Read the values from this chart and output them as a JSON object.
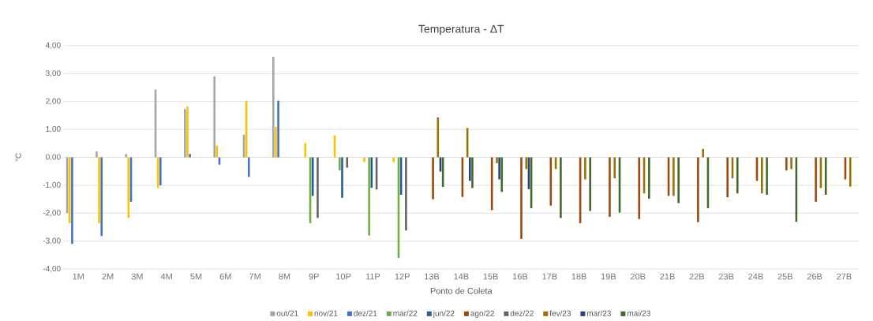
{
  "chart_data": {
    "type": "bar",
    "title": "Temperatura - ΔT",
    "xlabel": "Ponto de Coleta",
    "ylabel": "°C",
    "categories": [
      "1M",
      "2M",
      "3M",
      "4M",
      "5M",
      "6M",
      "7M",
      "8M",
      "9P",
      "10P",
      "11P",
      "12P",
      "13B",
      "14B",
      "15B",
      "16B",
      "17B",
      "18B",
      "19B",
      "20B",
      "21B",
      "22B",
      "23B",
      "24B",
      "25B",
      "26B",
      "27B"
    ],
    "series": [
      {
        "name": "out/21",
        "color": "#a5a5a5",
        "values": [
          -1.99,
          0.21,
          0.12,
          2.43,
          1.73,
          2.9,
          0.81,
          3.6,
          null,
          null,
          null,
          null,
          null,
          null,
          null,
          null,
          null,
          null,
          null,
          null,
          null,
          null,
          null,
          null,
          null,
          null,
          null
        ]
      },
      {
        "name": "nov/21",
        "color": "#ffc000",
        "values": [
          -2.36,
          -2.36,
          -2.17,
          -1.09,
          1.82,
          0.42,
          2.03,
          1.09,
          0.51,
          0.79,
          -0.17,
          -0.17,
          null,
          null,
          null,
          null,
          null,
          null,
          null,
          null,
          null,
          null,
          null,
          null,
          null,
          null,
          null
        ]
      },
      {
        "name": "dez/21",
        "color": "#4472c4",
        "values": [
          -3.1,
          -2.82,
          -1.59,
          -1.0,
          0.12,
          -0.26,
          -0.7,
          2.03,
          null,
          null,
          null,
          null,
          null,
          null,
          null,
          null,
          null,
          null,
          null,
          null,
          null,
          null,
          null,
          null,
          null,
          null,
          null
        ]
      },
      {
        "name": "mar/22",
        "color": "#70ad47",
        "values": [
          null,
          null,
          null,
          null,
          null,
          null,
          null,
          null,
          -2.36,
          -0.47,
          -2.8,
          -3.6,
          null,
          null,
          null,
          null,
          null,
          null,
          null,
          null,
          null,
          null,
          null,
          null,
          null,
          null,
          null
        ]
      },
      {
        "name": "jun/22",
        "color": "#255e91",
        "values": [
          null,
          null,
          null,
          null,
          null,
          null,
          null,
          null,
          -1.38,
          -1.45,
          -1.09,
          -1.34,
          null,
          null,
          null,
          null,
          null,
          null,
          null,
          null,
          null,
          null,
          null,
          null,
          null,
          null,
          null
        ]
      },
      {
        "name": "ago/22",
        "color": "#9e480e",
        "values": [
          null,
          null,
          null,
          null,
          null,
          null,
          null,
          null,
          null,
          null,
          null,
          null,
          -1.5,
          -1.42,
          -1.89,
          -2.92,
          -1.73,
          -2.36,
          -2.13,
          -2.21,
          -1.38,
          -2.32,
          -1.43,
          -0.84,
          -0.47,
          -1.59,
          -0.79
        ]
      },
      {
        "name": "dez/22",
        "color": "#636363",
        "values": [
          null,
          null,
          null,
          null,
          null,
          null,
          null,
          null,
          -2.17,
          -0.37,
          -1.15,
          -2.62,
          null,
          null,
          null,
          null,
          null,
          null,
          null,
          null,
          null,
          null,
          null,
          null,
          null,
          null,
          null
        ]
      },
      {
        "name": "fev/23",
        "color": "#997300",
        "values": [
          null,
          null,
          null,
          null,
          null,
          null,
          null,
          null,
          null,
          null,
          null,
          null,
          1.43,
          1.05,
          -0.21,
          -0.42,
          -0.42,
          -0.79,
          -0.75,
          -1.29,
          -1.38,
          0.3,
          -0.75,
          -1.29,
          -0.42,
          -1.1,
          -1.05
        ]
      },
      {
        "name": "mar/23",
        "color": "#264478",
        "values": [
          null,
          null,
          null,
          null,
          null,
          null,
          null,
          null,
          null,
          null,
          null,
          null,
          -0.51,
          -0.84,
          -0.79,
          -1.14,
          null,
          null,
          null,
          null,
          null,
          null,
          null,
          null,
          null,
          null,
          null
        ]
      },
      {
        "name": "mai/23",
        "color": "#43682b",
        "values": [
          null,
          null,
          null,
          null,
          null,
          null,
          null,
          null,
          null,
          null,
          null,
          null,
          -1.06,
          -1.1,
          -1.24,
          -1.82,
          -2.17,
          -1.92,
          -1.98,
          -1.48,
          -1.64,
          -1.82,
          -1.29,
          -1.34,
          -2.31,
          -1.34,
          null
        ]
      }
    ],
    "ylim": [
      -4,
      4
    ],
    "yticks": [
      {
        "value": -4,
        "label": "-4,00"
      },
      {
        "value": -3,
        "label": "-3,00"
      },
      {
        "value": -2,
        "label": "-2,00"
      },
      {
        "value": -1,
        "label": "-1,00"
      },
      {
        "value": 0,
        "label": "0,00"
      },
      {
        "value": 1,
        "label": "1,00"
      },
      {
        "value": 2,
        "label": "2,00"
      },
      {
        "value": 3,
        "label": "3,00"
      },
      {
        "value": 4,
        "label": "4,00"
      }
    ],
    "grid": "y",
    "legend": "bottom"
  }
}
